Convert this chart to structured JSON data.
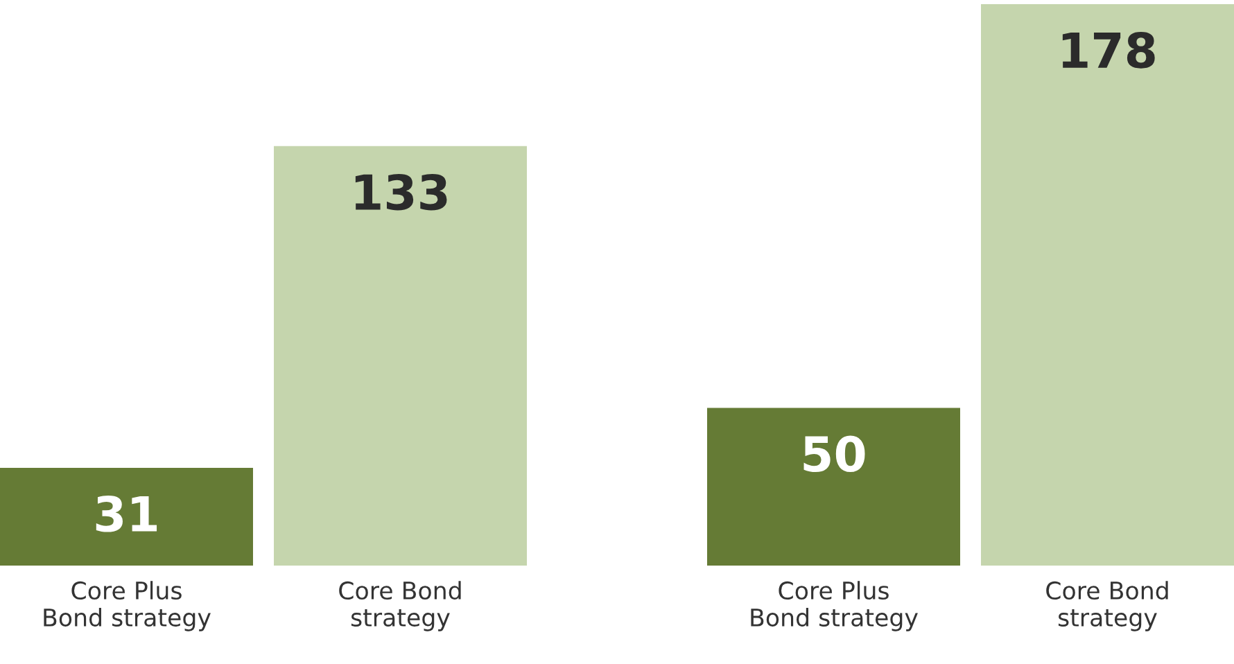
{
  "chart_data": [
    {
      "type": "bar",
      "categories": [
        "Core Plus\nBond strategy",
        "Core Bond\nstrategy"
      ],
      "values": [
        31,
        133
      ],
      "colors": [
        "#657b35",
        "#c5d5ad"
      ],
      "data_labels": true,
      "grid": false,
      "legend": false
    },
    {
      "type": "bar",
      "categories": [
        "Core Plus\nBond strategy",
        "Core Bond\nstrategy"
      ],
      "values": [
        50,
        178
      ],
      "colors": [
        "#657b35",
        "#c5d5ad"
      ],
      "data_labels": true,
      "grid": false,
      "legend": false
    }
  ]
}
